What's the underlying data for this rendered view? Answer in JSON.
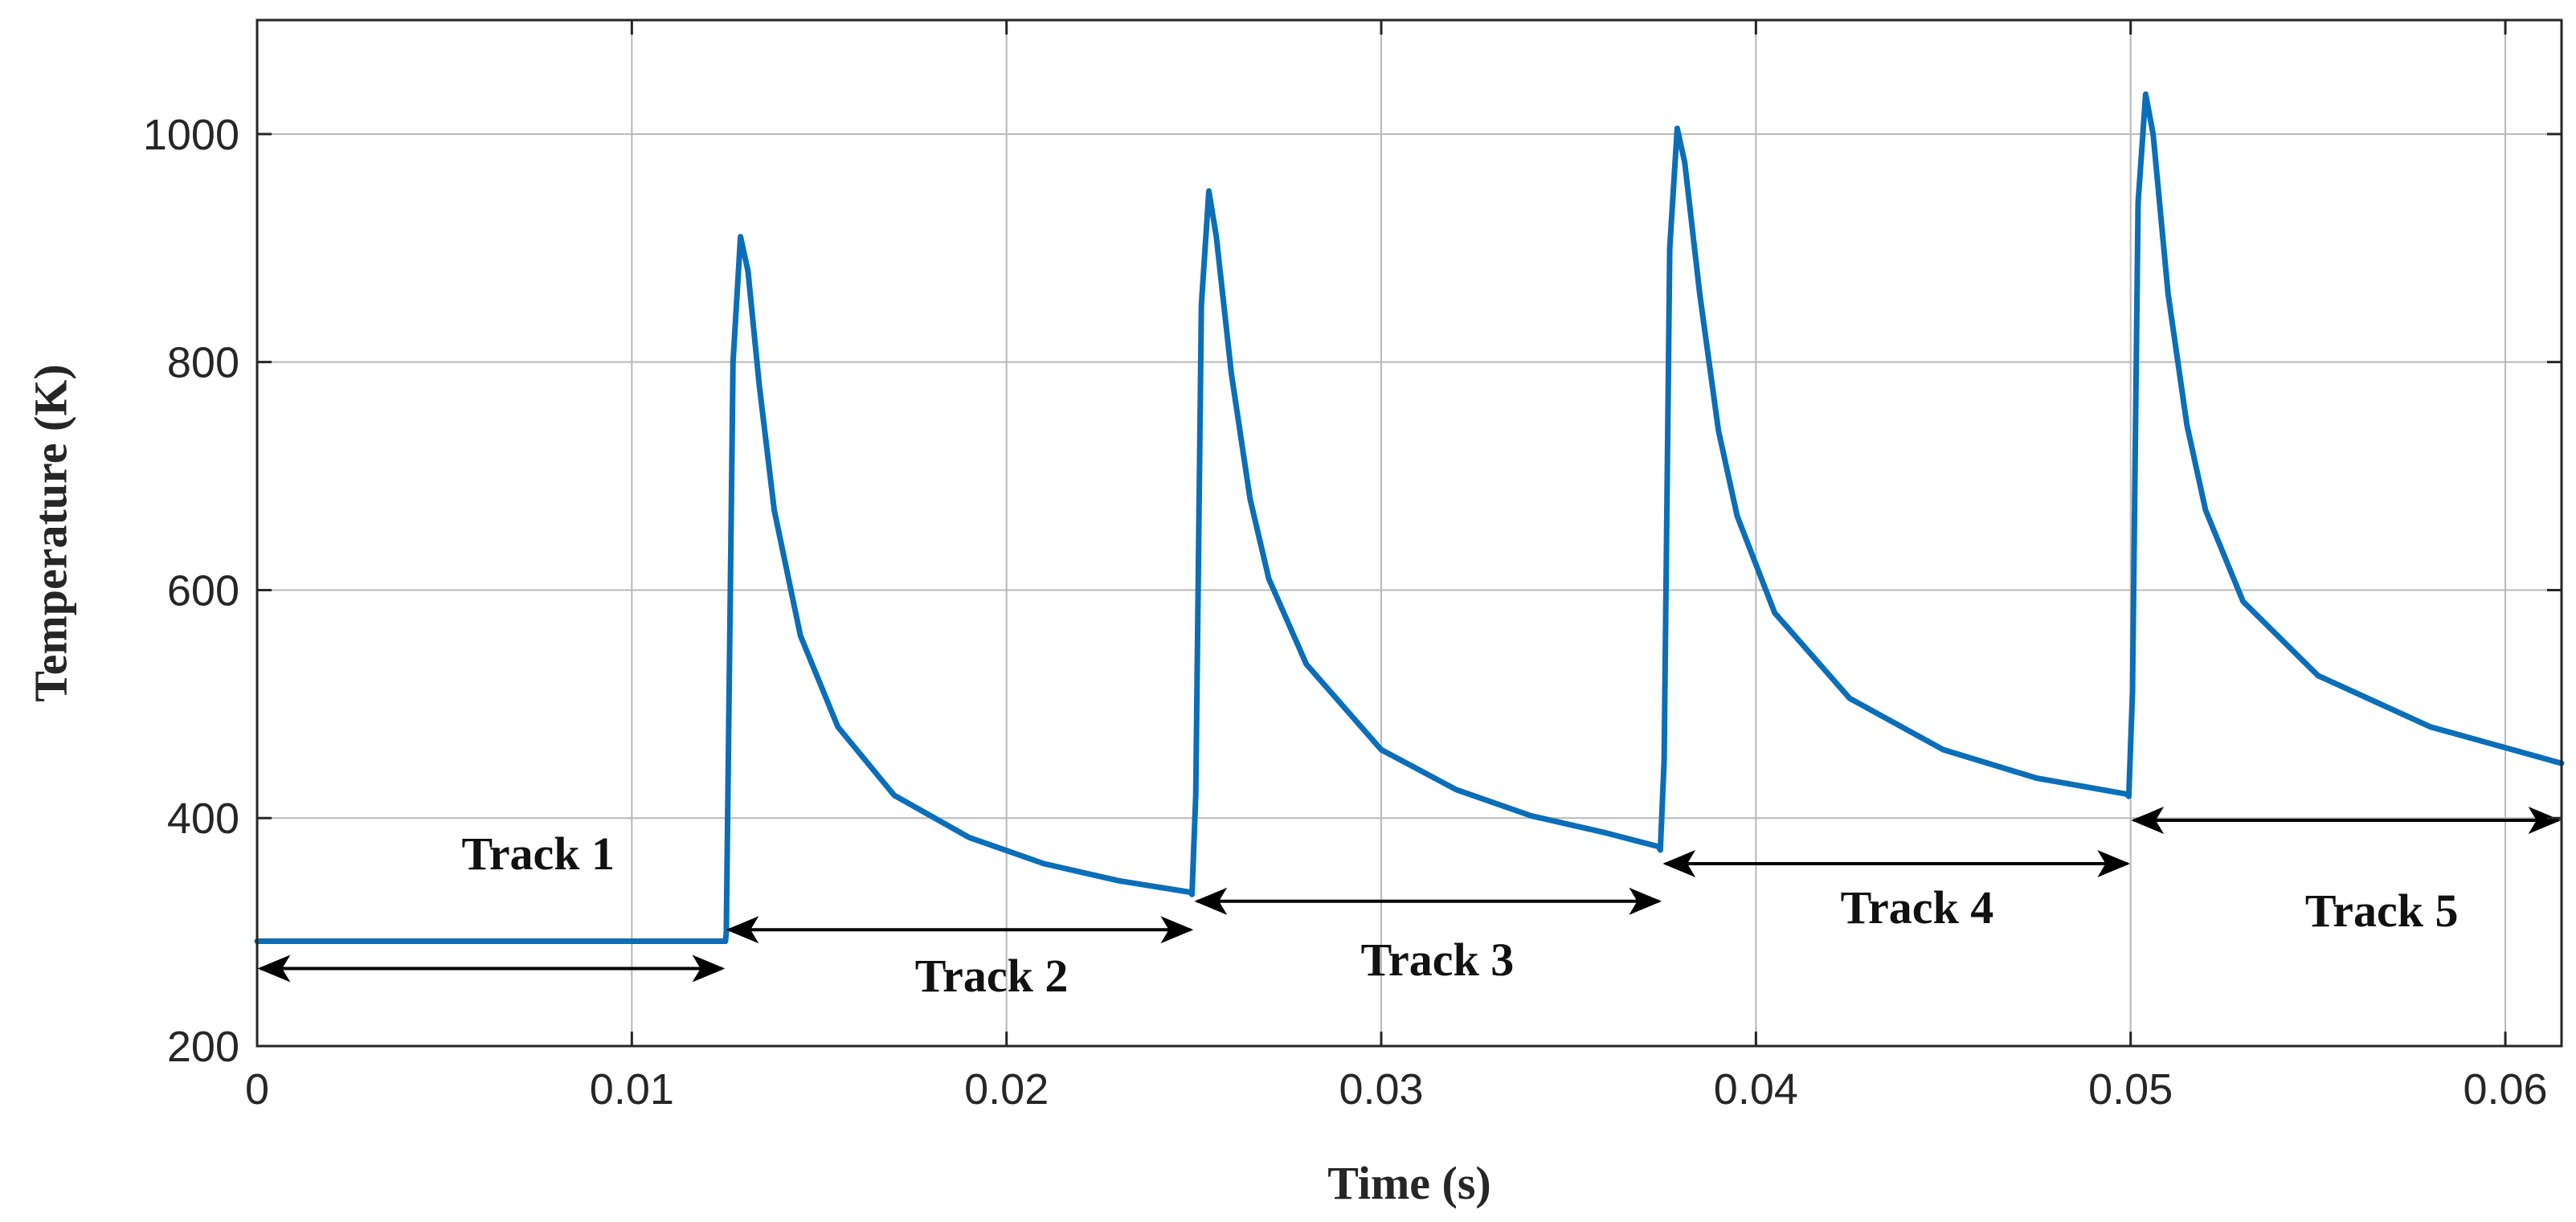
{
  "chart_data": {
    "type": "line",
    "title": "",
    "xlabel": "Time (s)",
    "ylabel": "Temperature (K)",
    "xlim": [
      0,
      0.0615
    ],
    "ylim": [
      200,
      1100
    ],
    "xticks": [
      0,
      0.01,
      0.02,
      0.03,
      0.04,
      0.05,
      0.06
    ],
    "xtick_labels": [
      "0",
      "0.01",
      "0.02",
      "0.03",
      "0.04",
      "0.05",
      "0.06"
    ],
    "yticks": [
      200,
      400,
      600,
      800,
      1000
    ],
    "ytick_labels": [
      "200",
      "400",
      "600",
      "800",
      "1000"
    ],
    "grid": true,
    "line_color": "#0a6eb8",
    "series": [
      {
        "name": "Temperature",
        "x": [
          0,
          0.0125,
          0.01252,
          0.0127,
          0.0129,
          0.0131,
          0.0134,
          0.0138,
          0.0145,
          0.0155,
          0.017,
          0.019,
          0.021,
          0.023,
          0.0249,
          0.02495,
          0.02505,
          0.0252,
          0.0254,
          0.0256,
          0.026,
          0.0265,
          0.027,
          0.028,
          0.03,
          0.032,
          0.034,
          0.036,
          0.0374,
          0.03745,
          0.03755,
          0.0377,
          0.0379,
          0.0381,
          0.0385,
          0.039,
          0.0395,
          0.0405,
          0.0425,
          0.045,
          0.0475,
          0.0499,
          0.04995,
          0.05005,
          0.0502,
          0.0504,
          0.0506,
          0.051,
          0.0515,
          0.052,
          0.053,
          0.055,
          0.058,
          0.0615
        ],
        "y": [
          292,
          292,
          300,
          800,
          910,
          880,
          780,
          670,
          560,
          480,
          420,
          383,
          360,
          345,
          335,
          333,
          420,
          850,
          950,
          910,
          790,
          680,
          610,
          535,
          460,
          425,
          402,
          387,
          375,
          372,
          450,
          900,
          1005,
          975,
          860,
          740,
          665,
          580,
          505,
          460,
          435,
          421,
          419,
          510,
          940,
          1035,
          1000,
          860,
          745,
          670,
          590,
          525,
          480,
          448
        ]
      }
    ],
    "annotations": [
      {
        "text": "Track 1",
        "x0": 0,
        "x1": 0.0125,
        "arrow_y": 268,
        "label_x": 0.0075,
        "label_y": 355
      },
      {
        "text": "Track 2",
        "x0": 0.0125,
        "x1": 0.025,
        "arrow_y": 302,
        "label_x": 0.0196,
        "label_y": 248
      },
      {
        "text": "Track 3",
        "x0": 0.025,
        "x1": 0.0375,
        "arrow_y": 327,
        "label_x": 0.0315,
        "label_y": 262
      },
      {
        "text": "Track 4",
        "x0": 0.0375,
        "x1": 0.05,
        "arrow_y": 360,
        "label_x": 0.0443,
        "label_y": 308
      },
      {
        "text": "Track 5",
        "x0": 0.05,
        "x1": 0.0615,
        "arrow_y": 398,
        "label_x": 0.0567,
        "label_y": 305
      }
    ]
  }
}
